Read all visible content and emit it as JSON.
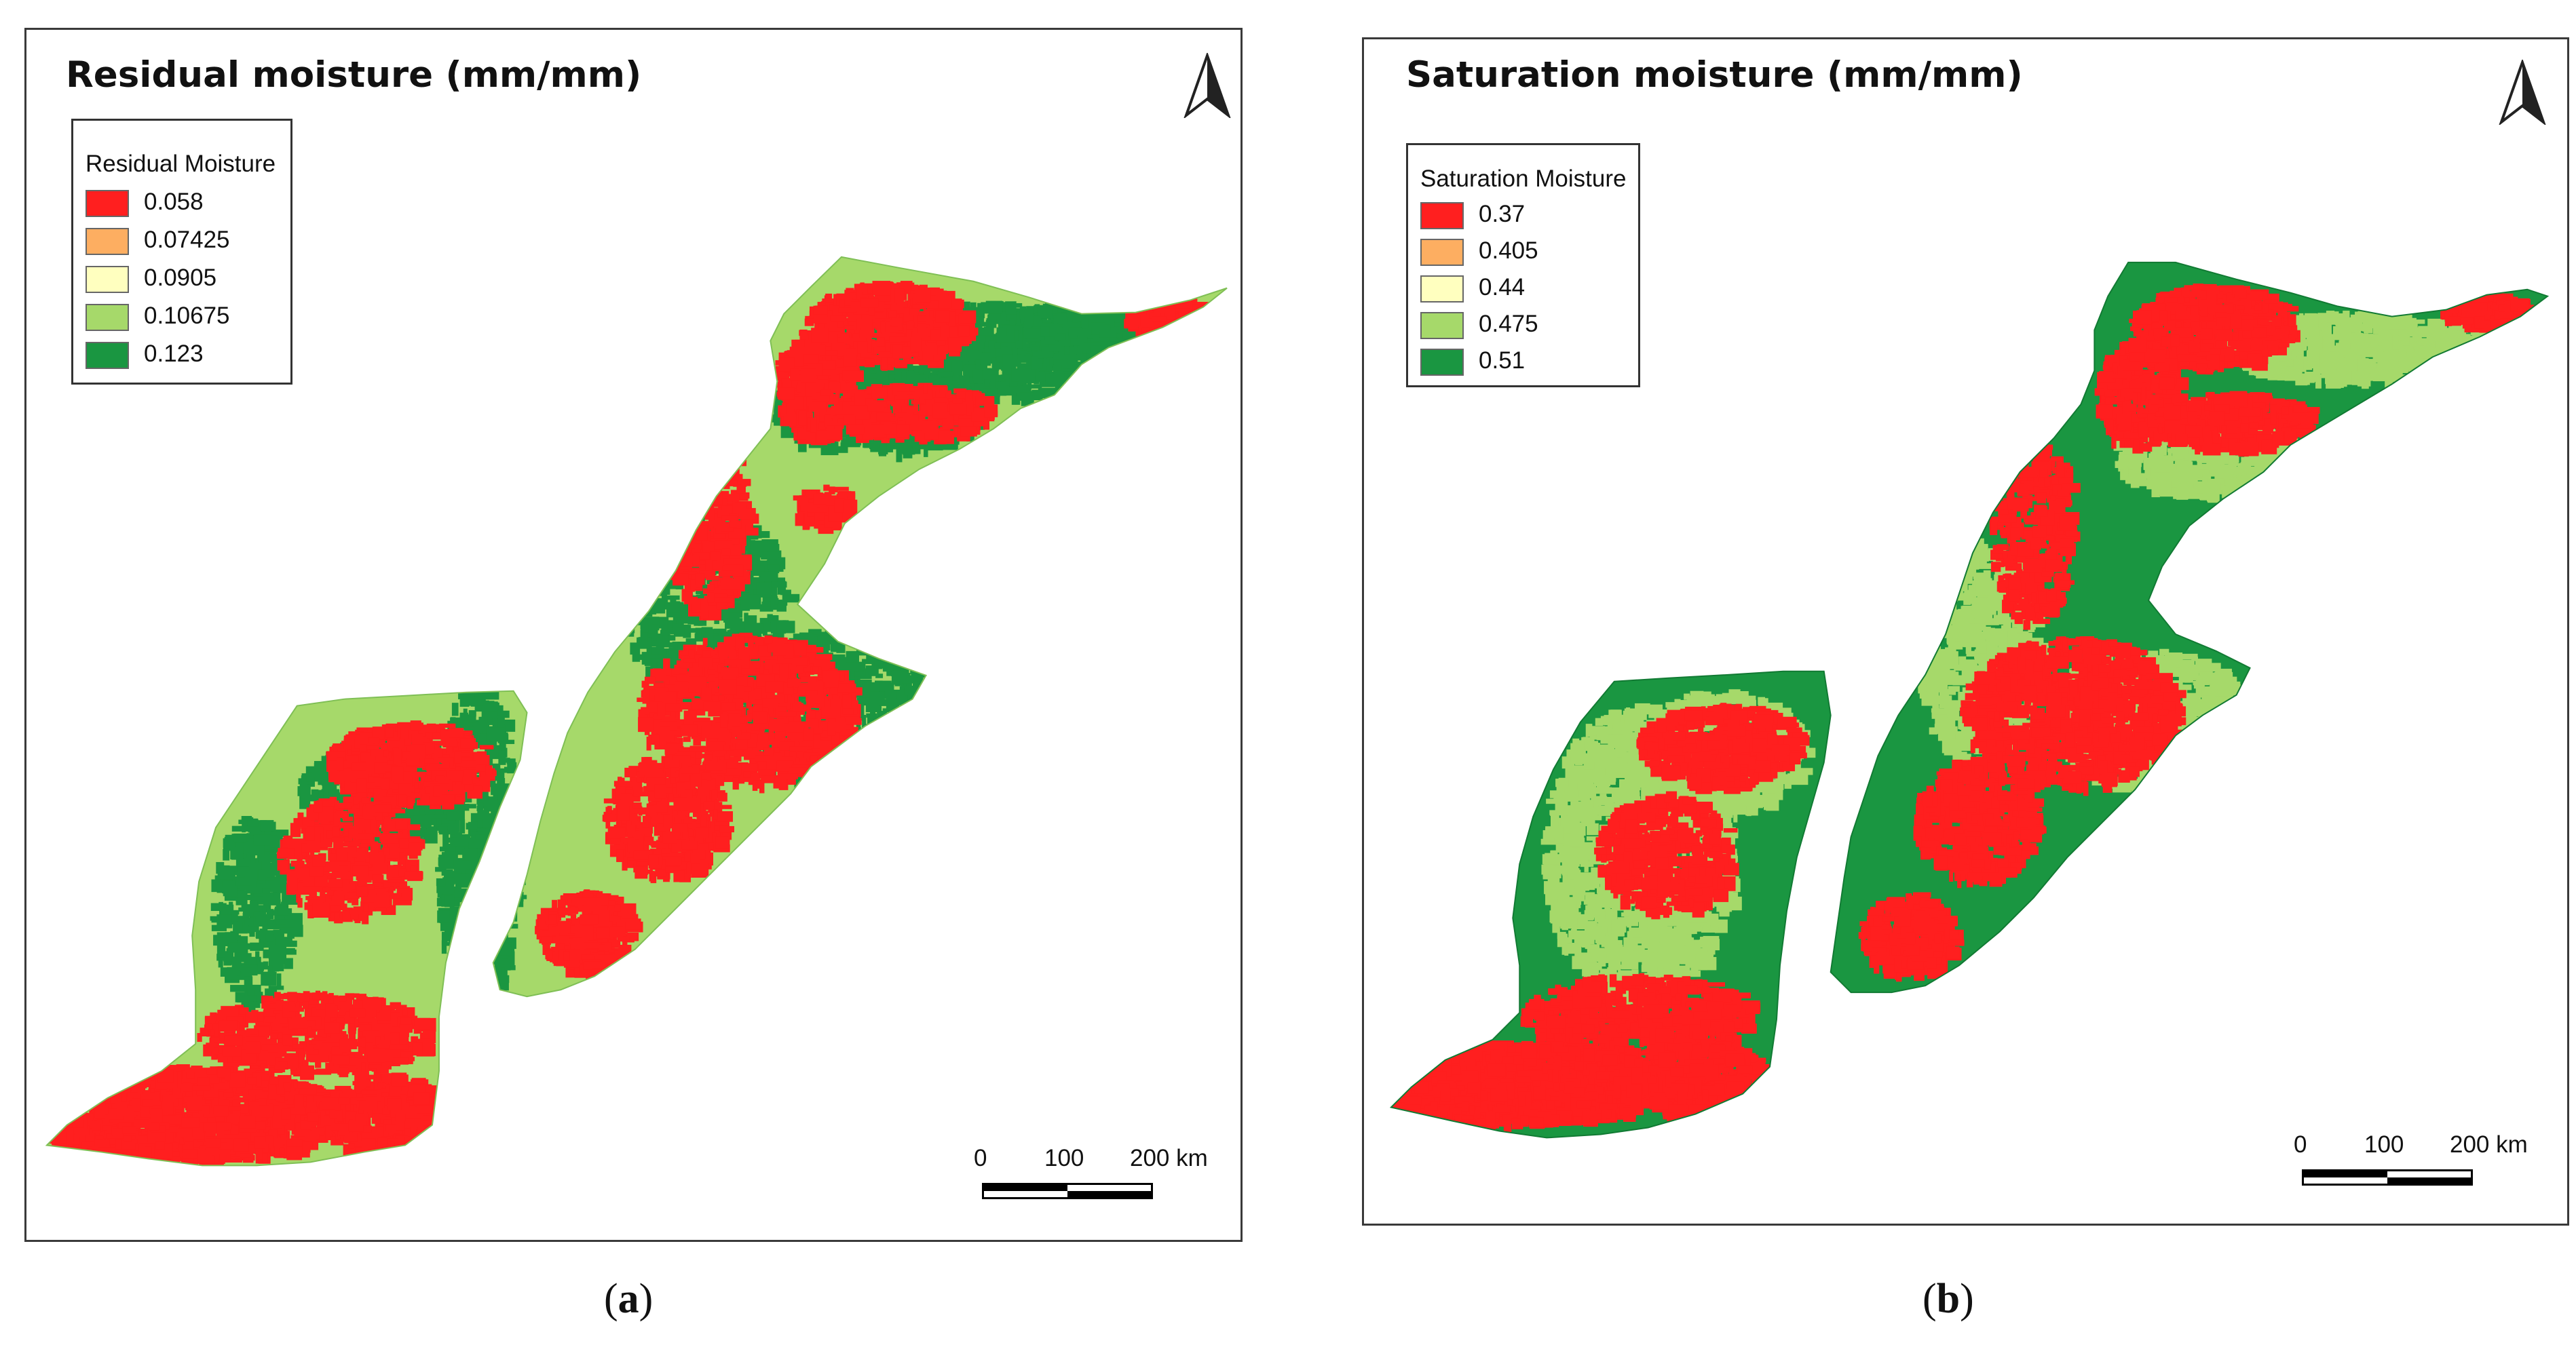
{
  "colors": {
    "class1": "#ff1f1f",
    "class2": "#fdae61",
    "class3": "#ffffbf",
    "class4": "#a6d96a",
    "class5": "#1a9641",
    "frame": "#3a3a3a"
  },
  "maps": [
    {
      "title": "Residual moisture (mm/mm)",
      "legend_title": "Residual Moisture",
      "legend": [
        {
          "label": "0.058",
          "color": "#ff1f1f"
        },
        {
          "label": "0.07425",
          "color": "#fdae61"
        },
        {
          "label": "0.0905",
          "color": "#ffffbf"
        },
        {
          "label": "0.10675",
          "color": "#a6d96a"
        },
        {
          "label": "0.123",
          "color": "#1a9641"
        }
      ],
      "base_class_color": "#a6d96a",
      "scale": {
        "l0": "0",
        "l1": "100",
        "l2": "200 km"
      },
      "caption_open": "(",
      "caption_letter": "a",
      "caption_close": ")",
      "north_icon": "north-arrow-icon"
    },
    {
      "title": "Saturation moisture (mm/mm)",
      "legend_title": "Saturation Moisture",
      "legend": [
        {
          "label": "0.37",
          "color": "#ff1f1f"
        },
        {
          "label": "0.405",
          "color": "#fdae61"
        },
        {
          "label": "0.44",
          "color": "#ffffbf"
        },
        {
          "label": "0.475",
          "color": "#a6d96a"
        },
        {
          "label": "0.51",
          "color": "#1a9641"
        }
      ],
      "base_class_color": "#1a9641",
      "scale": {
        "l0": "0",
        "l1": "100",
        "l2": "200 km"
      },
      "caption_open": "(",
      "caption_letter": "b",
      "caption_close": ")",
      "north_icon": "north-arrow-icon"
    }
  ]
}
